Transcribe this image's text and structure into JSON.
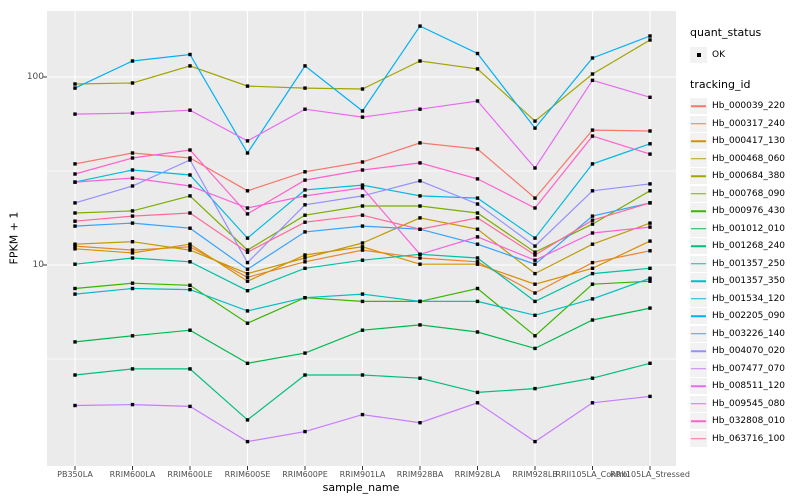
{
  "figure": {
    "panel_background": "#EBEBEB",
    "gridline_color": "#FFFFFF",
    "axis_text_color": "#4D4D4D",
    "tick_color": "#333333",
    "point_color": "#000000"
  },
  "axes": {
    "y_title": "FPKM + 1",
    "x_title": "sample_name",
    "y_ticks": [
      {
        "label": "100",
        "value": 100
      },
      {
        "label": "10",
        "value": 10
      }
    ]
  },
  "legend": {
    "quant_title": "quant_status",
    "quant_items": [
      {
        "label": "OK"
      }
    ],
    "tracking_title": "tracking_id"
  },
  "chart_data": {
    "type": "line",
    "title": "",
    "xlabel": "sample_name",
    "ylabel": "FPKM + 1",
    "y_scale": "log10",
    "ylim": [
      1,
      250
    ],
    "grid": true,
    "legend_position": "right",
    "x_categories": [
      "PB350LA",
      "RRIM600LA",
      "RRIM600LE",
      "RRIM600SE",
      "RRIM600PE",
      "RRIM901LA",
      "RRIM928BA",
      "RRIM928LA",
      "RRIM928LB",
      "RRII105LA_Control",
      "RRII105LA_Stressed"
    ],
    "quant_status": "OK",
    "series": [
      {
        "name": "Hb_000039_220",
        "color": "#F8766D",
        "values": [
          34.5,
          39.4,
          37.1,
          24.8,
          31.3,
          35.3,
          44.6,
          41.4,
          22.7,
          52.2,
          51.6
        ]
      },
      {
        "name": "Hb_000317_240",
        "color": "#EA8331",
        "values": [
          12.6,
          12.0,
          12.5,
          8.6,
          10.4,
          12.0,
          10.9,
          10.4,
          7.1,
          10.3,
          11.9
        ]
      },
      {
        "name": "Hb_000417_130",
        "color": "#D89000",
        "values": [
          12.2,
          11.6,
          12.9,
          8.2,
          11.3,
          12.5,
          10.1,
          10.1,
          7.9,
          9.6,
          13.4
        ]
      },
      {
        "name": "Hb_000468_060",
        "color": "#C09B00",
        "values": [
          12.9,
          13.3,
          12.0,
          9.0,
          10.9,
          13.1,
          17.8,
          15.5,
          9.0,
          12.9,
          16.7
        ]
      },
      {
        "name": "Hb_000684_380",
        "color": "#A3A500",
        "values": [
          91.8,
          92.9,
          114.6,
          89.5,
          87.3,
          86.3,
          121.6,
          110.4,
          58.3,
          103.7,
          157.4
        ]
      },
      {
        "name": "Hb_000768_090",
        "color": "#7CAE00",
        "values": [
          18.9,
          19.4,
          23.3,
          12.0,
          18.4,
          20.6,
          20.6,
          18.9,
          11.7,
          16.5,
          24.8
        ]
      },
      {
        "name": "Hb_000976_430",
        "color": "#39B600",
        "values": [
          7.5,
          8.0,
          7.8,
          4.9,
          6.7,
          6.4,
          6.4,
          7.5,
          4.2,
          7.9,
          8.2
        ]
      },
      {
        "name": "Hb_001012_010",
        "color": "#00BB4E",
        "values": [
          3.9,
          4.2,
          4.5,
          3.0,
          3.4,
          4.5,
          4.8,
          4.4,
          3.6,
          5.1,
          5.9
        ]
      },
      {
        "name": "Hb_001268_240",
        "color": "#00BF7D",
        "values": [
          2.6,
          2.8,
          2.8,
          1.5,
          2.6,
          2.6,
          2.5,
          2.1,
          2.2,
          2.5,
          3.0
        ]
      },
      {
        "name": "Hb_001357_250",
        "color": "#00C1A3",
        "values": [
          10.1,
          10.9,
          10.4,
          7.3,
          9.6,
          10.6,
          11.4,
          10.9,
          6.4,
          9.0,
          9.6
        ]
      },
      {
        "name": "Hb_001357_350",
        "color": "#00BFC4",
        "values": [
          7.0,
          7.5,
          7.4,
          5.7,
          6.7,
          7.0,
          6.4,
          6.4,
          5.4,
          6.6,
          8.5
        ]
      },
      {
        "name": "Hb_001534_120",
        "color": "#00BAE0",
        "values": [
          27.6,
          32.0,
          30.1,
          13.9,
          25.1,
          26.6,
          23.3,
          22.7,
          13.9,
          34.5,
          44.1
        ]
      },
      {
        "name": "Hb_002205_090",
        "color": "#00B0F6",
        "values": [
          87.3,
          121.6,
          131.8,
          39.4,
          114.6,
          65.9,
          186.6,
          133.4,
          53.5,
          126.2,
          165.2
        ]
      },
      {
        "name": "Hb_003226_140",
        "color": "#35A2FF",
        "values": [
          16.1,
          16.7,
          15.7,
          9.5,
          15.0,
          16.1,
          15.5,
          12.9,
          10.1,
          18.2,
          21.4
        ]
      },
      {
        "name": "Hb_004070_020",
        "color": "#9590FF",
        "values": [
          21.4,
          26.3,
          36.2,
          10.3,
          20.9,
          23.3,
          28.0,
          21.1,
          12.6,
          24.8,
          27.0
        ]
      },
      {
        "name": "Hb_007477_070",
        "color": "#C77CFF",
        "values": [
          1.79,
          1.81,
          1.77,
          1.15,
          1.3,
          1.6,
          1.45,
          1.85,
          1.15,
          1.85,
          2.0
        ]
      },
      {
        "name": "Hb_008511_120",
        "color": "#E76BF3",
        "values": [
          63.5,
          64.3,
          66.6,
          45.7,
          67.4,
          61.2,
          67.4,
          74.5,
          32.8,
          96.0,
          78.0
        ]
      },
      {
        "name": "Hb_009545_080",
        "color": "#FA62DB",
        "values": [
          27.6,
          29.0,
          26.3,
          20.1,
          23.3,
          25.7,
          11.4,
          14.1,
          10.6,
          14.8,
          15.9
        ]
      },
      {
        "name": "Hb_032808_010",
        "color": "#FF61CC",
        "values": [
          30.5,
          37.1,
          40.9,
          18.7,
          28.3,
          32.0,
          34.9,
          28.7,
          20.1,
          48.5,
          38.9
        ]
      },
      {
        "name": "Hb_063716_100",
        "color": "#FF6A98",
        "values": [
          17.1,
          18.2,
          18.9,
          11.7,
          16.9,
          18.4,
          15.5,
          17.8,
          11.3,
          17.3,
          21.4
        ]
      }
    ]
  }
}
